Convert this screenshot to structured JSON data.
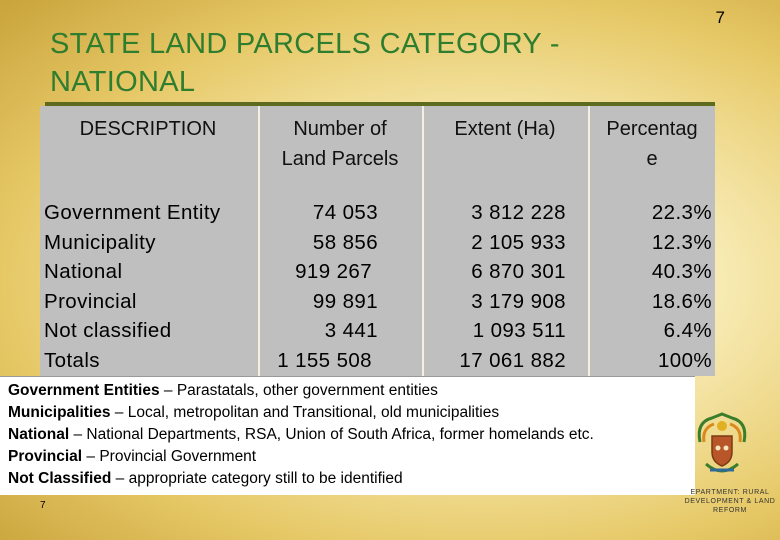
{
  "page_number": "7",
  "title_line1": "STATE LAND PARCELS CATEGORY -",
  "title_line2": "NATIONAL",
  "table": {
    "headers": {
      "description": "DESCRIPTION",
      "parcels_line1": "Number of",
      "parcels_line2": "Land Parcels",
      "extent": "Extent (Ha)",
      "percentage_line1": "Percentag",
      "percentage_line2": "e"
    },
    "rows": [
      {
        "description": "Government Entity",
        "parcels": "74 053",
        "extent": "3 812 228",
        "percentage": "22.3%"
      },
      {
        "description": "Municipality",
        "parcels": "58 856",
        "extent": "2 105 933",
        "percentage": "12.3%"
      },
      {
        "description": "National",
        "parcels": "919 267",
        "extent": "6 870 301",
        "percentage": "40.3%"
      },
      {
        "description": "Provincial",
        "parcels": "99 891",
        "extent": "3 179 908",
        "percentage": "18.6%"
      },
      {
        "description": "Not classified",
        "parcels": "3 441",
        "extent": "1 093 511",
        "percentage": "6.4%"
      },
      {
        "description": "Totals",
        "parcels": "1 155 508",
        "extent": "17 061 882",
        "percentage": "100%"
      }
    ]
  },
  "notes": [
    {
      "term": "Government Entities",
      "definition": " – Parastatals, other government entities"
    },
    {
      "term": "Municipalities",
      "definition": " – Local, metropolitan and Transitional, old municipalities"
    },
    {
      "term": "National",
      "definition": " – National Departments, RSA, Union of South Africa, former homelands etc."
    },
    {
      "term": "Provincial",
      "definition": " – Provincial Government"
    },
    {
      "term": "Not Classified",
      "definition": " – appropriate category still to be identified"
    }
  ],
  "footer_page_number": "7",
  "department_line1": "EPARTMENT: RURAL",
  "department_line2": "DEVELOPMENT & LAND",
  "department_line3": "REFORM",
  "colors": {
    "title": "#2f7d2f",
    "table_background": "#bfbfbf",
    "background_gold": "#e6c866"
  }
}
